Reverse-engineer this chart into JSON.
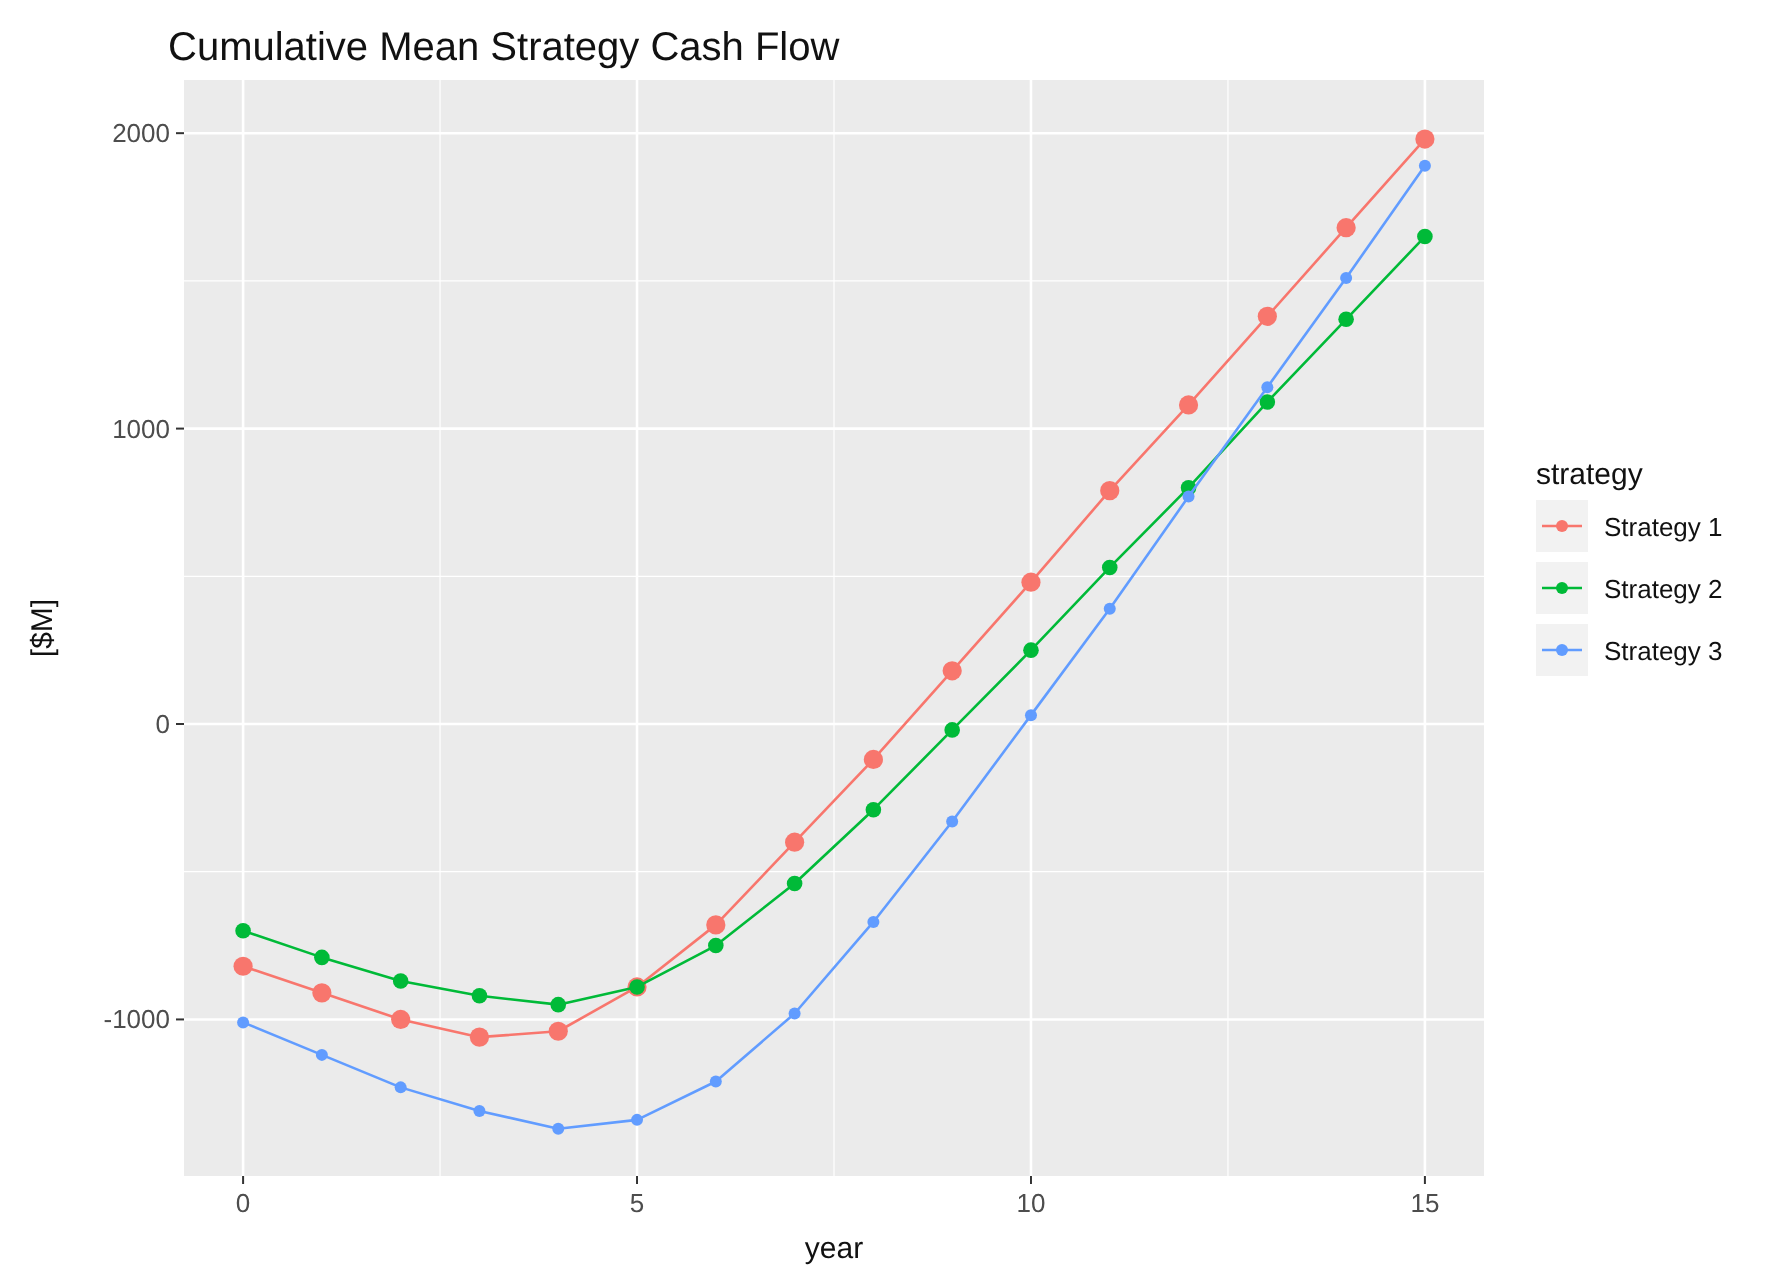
{
  "chart_data": {
    "type": "line",
    "title": "Cumulative Mean Strategy Cash Flow",
    "xlabel": "year",
    "ylabel": "[$M]",
    "legend_title": "strategy",
    "x": [
      0,
      1,
      2,
      3,
      4,
      5,
      6,
      7,
      8,
      9,
      10,
      11,
      12,
      13,
      14,
      15
    ],
    "series": [
      {
        "name": "Strategy 1",
        "color": "#f8766d",
        "values": [
          -820,
          -910,
          -1000,
          -1060,
          -1040,
          -890,
          -680,
          -400,
          -120,
          180,
          480,
          790,
          1080,
          1380,
          1680,
          1980
        ]
      },
      {
        "name": "Strategy 2",
        "color": "#00ba38",
        "values": [
          -700,
          -790,
          -870,
          -920,
          -950,
          -890,
          -750,
          -540,
          -290,
          -20,
          250,
          530,
          800,
          1090,
          1370,
          1650
        ]
      },
      {
        "name": "Strategy 3",
        "color": "#619cff",
        "values": [
          -1010,
          -1120,
          -1230,
          -1310,
          -1370,
          -1340,
          -1210,
          -980,
          -670,
          -330,
          30,
          390,
          770,
          1140,
          1510,
          1890
        ]
      }
    ],
    "xlim": [
      -0.75,
      15.75
    ],
    "xticks": [
      0,
      5,
      10,
      15
    ],
    "ylim": [
      -1530,
      2180
    ],
    "yticks": [
      -1000,
      0,
      1000,
      2000
    ],
    "grid": true,
    "legend": "right",
    "marker": "circle",
    "line_style": "solid"
  }
}
